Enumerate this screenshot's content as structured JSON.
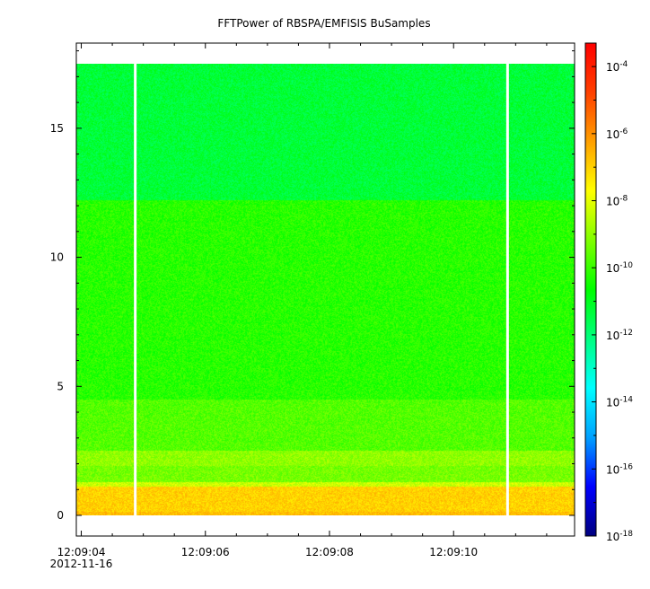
{
  "chart_data": {
    "type": "heatmap",
    "title": "FFTPower of RBSPA/EMFISIS  BuSamples",
    "xlabel": "",
    "ylabel": "",
    "x_range_seconds_after_12_09_04": [
      -0.08,
      7.95
    ],
    "x_ticks": [
      {
        "t": 0,
        "label": "12:09:04",
        "sublabel": "2012-11-16"
      },
      {
        "t": 2,
        "label": "12:09:06"
      },
      {
        "t": 4,
        "label": "12:09:08"
      },
      {
        "t": 6,
        "label": "12:09:10"
      }
    ],
    "ylim": [
      -0.8,
      18.3
    ],
    "y_ticks": [
      0,
      5,
      10,
      15
    ],
    "data_y_extent": [
      0,
      17.5
    ],
    "gaps_seconds_after_12_09_04": [
      0.87,
      6.87
    ],
    "colorbar": {
      "scale": "log",
      "range_exponent": [
        -18,
        -3.3
      ],
      "tick_exponents": [
        -18,
        -16,
        -14,
        -12,
        -10,
        -8,
        -6,
        -4
      ],
      "tick_labels": [
        "10-18",
        "10-16",
        "10-14",
        "10-12",
        "10-10",
        "10-8",
        "10-6",
        "10-4"
      ],
      "colormap": [
        "#00007f",
        "#0000ff",
        "#00a0ff",
        "#00ffff",
        "#00ff80",
        "#00ff00",
        "#80ff00",
        "#ffff00",
        "#ffa000",
        "#ff4000",
        "#ff0000"
      ]
    },
    "bands": [
      {
        "y": [
          0,
          0.15
        ],
        "log10_power": -6.7
      },
      {
        "y": [
          0.15,
          1.1
        ],
        "log10_power": -7.0
      },
      {
        "y": [
          1.1,
          1.3
        ],
        "log10_power": -8.3
      },
      {
        "y": [
          1.3,
          1.9
        ],
        "log10_power": -9.3
      },
      {
        "y": [
          1.9,
          2.5
        ],
        "log10_power": -9.0
      },
      {
        "y": [
          2.5,
          4.5
        ],
        "log10_power": -9.7
      },
      {
        "y": [
          4.5,
          12.2
        ],
        "log10_power": -10.2
      },
      {
        "y": [
          12.2,
          17.5
        ],
        "log10_power": -11.3
      }
    ]
  }
}
